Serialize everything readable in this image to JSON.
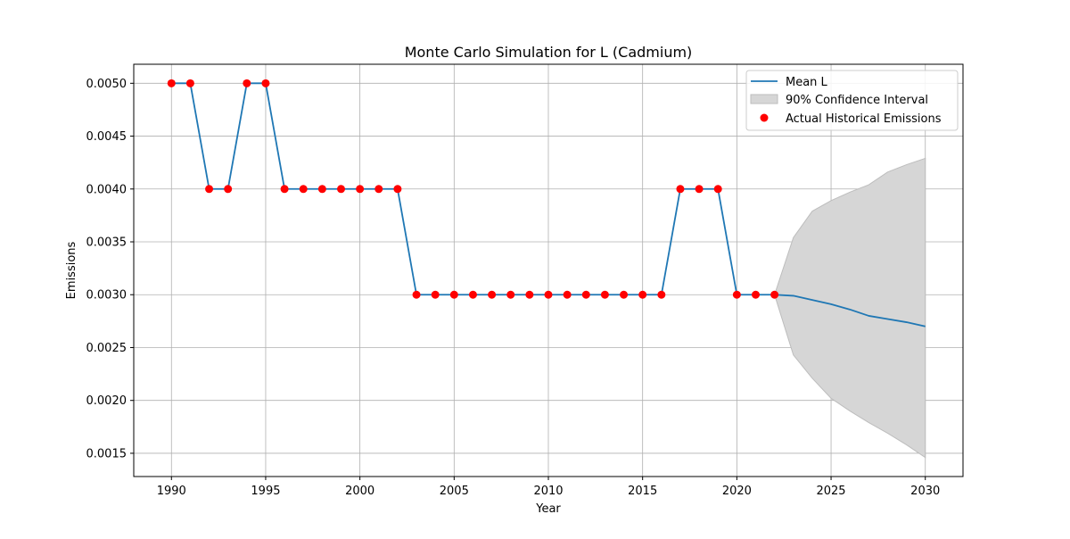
{
  "chart_data": {
    "type": "line",
    "title": "Monte Carlo Simulation for L (Cadmium)",
    "xlabel": "Year",
    "ylabel": "Emissions",
    "xlim": [
      1988,
      2032
    ],
    "ylim": [
      0.00128,
      0.00518
    ],
    "xticks": [
      1990,
      1995,
      2000,
      2005,
      2010,
      2015,
      2020,
      2025,
      2030
    ],
    "yticks": [
      0.0015,
      0.002,
      0.0025,
      0.003,
      0.0035,
      0.004,
      0.0045,
      0.005
    ],
    "ytick_labels": [
      "0.0015",
      "0.0020",
      "0.0025",
      "0.0030",
      "0.0035",
      "0.0040",
      "0.0045",
      "0.0050"
    ],
    "grid": true,
    "legend_position": "top-right",
    "colors": {
      "mean_line": "#1f77b4",
      "historical_points": "#ff0000",
      "confidence_fill": "#d6d6d6",
      "confidence_edge": "#bdbdbd",
      "grid": "#b0b0b0"
    },
    "series": [
      {
        "name": "Mean L",
        "kind": "line",
        "x": [
          1990,
          1991,
          1992,
          1993,
          1994,
          1995,
          1996,
          1997,
          1998,
          1999,
          2000,
          2001,
          2002,
          2003,
          2004,
          2005,
          2006,
          2007,
          2008,
          2009,
          2010,
          2011,
          2012,
          2013,
          2014,
          2015,
          2016,
          2017,
          2018,
          2019,
          2020,
          2021,
          2022,
          2023,
          2024,
          2025,
          2026,
          2027,
          2028,
          2029,
          2030
        ],
        "y": [
          0.005,
          0.005,
          0.004,
          0.004,
          0.005,
          0.005,
          0.004,
          0.004,
          0.004,
          0.004,
          0.004,
          0.004,
          0.004,
          0.003,
          0.003,
          0.003,
          0.003,
          0.003,
          0.003,
          0.003,
          0.003,
          0.003,
          0.003,
          0.003,
          0.003,
          0.003,
          0.003,
          0.004,
          0.004,
          0.004,
          0.003,
          0.003,
          0.003,
          0.00299,
          0.00295,
          0.00291,
          0.00286,
          0.0028,
          0.00277,
          0.00274,
          0.0027
        ]
      },
      {
        "name": "90% Confidence Interval",
        "kind": "band",
        "x": [
          2022,
          2023,
          2024,
          2025,
          2026,
          2027,
          2028,
          2029,
          2030
        ],
        "lower": [
          0.003,
          0.00243,
          0.00221,
          0.00202,
          0.0019,
          0.00179,
          0.00169,
          0.00158,
          0.00146
        ],
        "upper": [
          0.003,
          0.00354,
          0.00379,
          0.00389,
          0.00397,
          0.00404,
          0.00416,
          0.00423,
          0.00429
        ]
      },
      {
        "name": "Actual Historical Emissions",
        "kind": "scatter",
        "x": [
          1990,
          1991,
          1992,
          1993,
          1994,
          1995,
          1996,
          1997,
          1998,
          1999,
          2000,
          2001,
          2002,
          2003,
          2004,
          2005,
          2006,
          2007,
          2008,
          2009,
          2010,
          2011,
          2012,
          2013,
          2014,
          2015,
          2016,
          2017,
          2018,
          2019,
          2020,
          2021,
          2022
        ],
        "y": [
          0.005,
          0.005,
          0.004,
          0.004,
          0.005,
          0.005,
          0.004,
          0.004,
          0.004,
          0.004,
          0.004,
          0.004,
          0.004,
          0.003,
          0.003,
          0.003,
          0.003,
          0.003,
          0.003,
          0.003,
          0.003,
          0.003,
          0.003,
          0.003,
          0.003,
          0.003,
          0.003,
          0.004,
          0.004,
          0.004,
          0.003,
          0.003,
          0.003
        ]
      }
    ]
  }
}
